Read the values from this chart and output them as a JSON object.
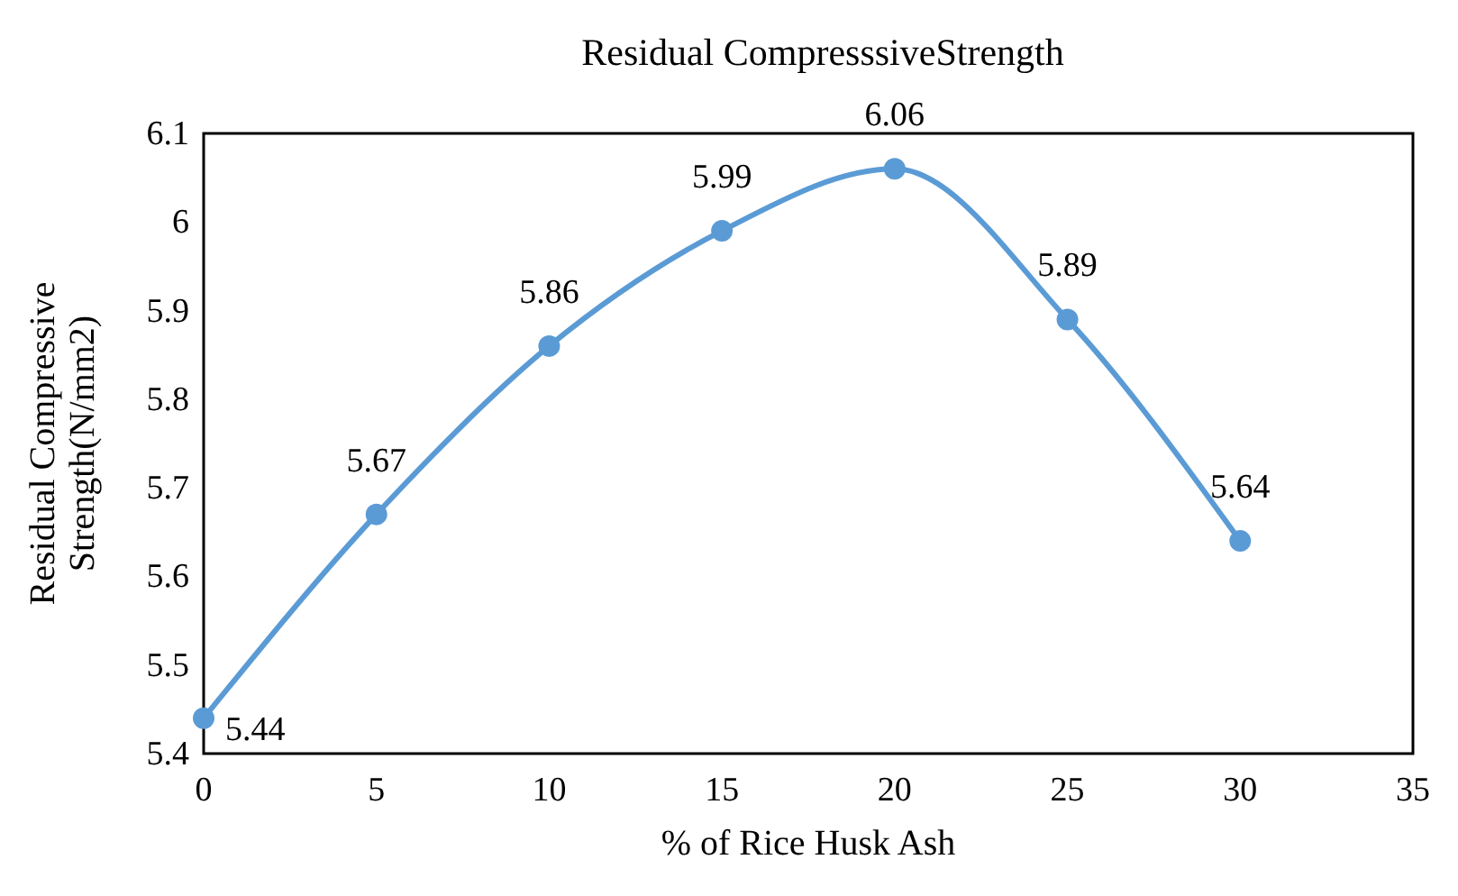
{
  "chart_data": {
    "type": "line",
    "title": "Residual CompresssiveStrength",
    "xlabel": "% of Rice Husk Ash",
    "ylabel": "Residual Compressive Strength(N/mm2)",
    "x": [
      0,
      5,
      10,
      15,
      20,
      25,
      30
    ],
    "series": [
      {
        "color": "#5b9bd5",
        "values": [
          5.44,
          5.67,
          5.86,
          5.99,
          6.06,
          5.89,
          5.64
        ]
      }
    ],
    "xlim": [
      0,
      35
    ],
    "xticks": [
      0,
      5,
      10,
      15,
      20,
      25,
      30,
      35
    ],
    "ylim": [
      5.4,
      6.1
    ],
    "yticks": [
      5.4,
      5.5,
      5.6,
      5.7,
      5.8,
      5.9,
      6,
      6.1
    ],
    "marker": "circle",
    "line_style": "solid",
    "data_labels": true
  }
}
